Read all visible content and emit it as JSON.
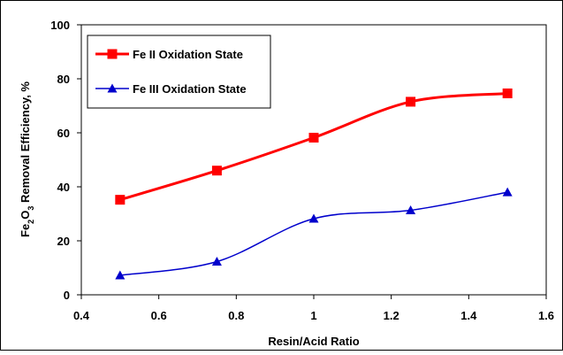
{
  "chart_data": {
    "type": "line",
    "title": "",
    "xlabel": "Resin/Acid Ratio",
    "ylabel_parts": [
      "Fe",
      "2",
      "O",
      "3",
      " Removal Efficiency, %"
    ],
    "xlim": [
      0.4,
      1.6
    ],
    "ylim": [
      0,
      100
    ],
    "x_ticks": [
      "0.4",
      "0.6",
      "0.8",
      "1",
      "1.2",
      "1.4",
      "1.6"
    ],
    "y_ticks": [
      "0",
      "20",
      "40",
      "60",
      "80",
      "100"
    ],
    "grid": false,
    "legend_position": "top-left",
    "series": [
      {
        "name": "Fe II Oxidation State",
        "color": "#ff0000",
        "marker": "square",
        "line_width": 3,
        "x": [
          0.5,
          0.75,
          1.0,
          1.25,
          1.5
        ],
        "y": [
          35.2,
          46.0,
          58.2,
          71.5,
          74.6
        ]
      },
      {
        "name": "Fe III Oxidation State",
        "color": "#0000cc",
        "marker": "triangle",
        "line_width": 1.5,
        "x": [
          0.5,
          0.75,
          1.0,
          1.25,
          1.5
        ],
        "y": [
          7.2,
          12.3,
          28.2,
          31.3,
          38.0
        ]
      }
    ]
  }
}
